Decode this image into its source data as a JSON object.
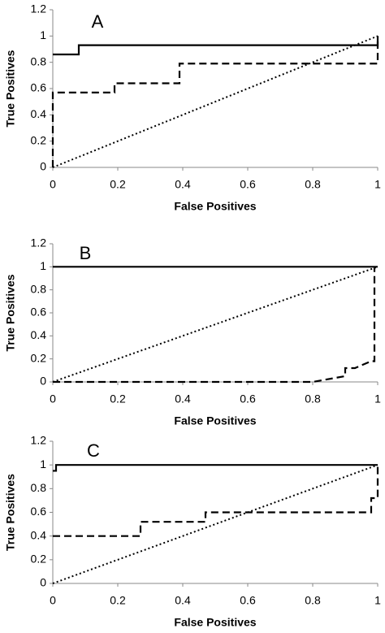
{
  "chart_data": [
    {
      "type": "line",
      "title": "A",
      "xlabel": "False Positives",
      "ylabel": "True Positives",
      "xlim": [
        0,
        1
      ],
      "ylim": [
        0,
        1.2
      ],
      "xticks": [
        0,
        0.2,
        0.4,
        0.6,
        0.8,
        1
      ],
      "yticks": [
        0,
        0.2,
        0.4,
        0.6,
        0.8,
        1,
        1.2
      ],
      "series": [
        {
          "color": "#000000",
          "dash": "solid",
          "x": [
            0,
            0.08,
            0.08,
            1,
            1
          ],
          "values": [
            0.86,
            0.86,
            0.93,
            0.93,
            1
          ]
        },
        {
          "color": "#000000",
          "dash": "dashed",
          "x": [
            0,
            0,
            0.19,
            0.19,
            0.39,
            0.39,
            1,
            1
          ],
          "values": [
            0,
            0.57,
            0.57,
            0.64,
            0.64,
            0.79,
            0.79,
            1
          ]
        },
        {
          "color": "#000000",
          "dash": "dotted",
          "x": [
            0,
            1
          ],
          "values": [
            0,
            1
          ]
        }
      ]
    },
    {
      "type": "line",
      "title": "B",
      "xlabel": "False Positives",
      "ylabel": "True Positives",
      "xlim": [
        0,
        1
      ],
      "ylim": [
        0,
        1.2
      ],
      "xticks": [
        0,
        0.2,
        0.4,
        0.6,
        0.8,
        1
      ],
      "yticks": [
        0,
        0.2,
        0.4,
        0.6,
        0.8,
        1,
        1.2
      ],
      "series": [
        {
          "color": "#000000",
          "dash": "solid",
          "x": [
            0,
            1
          ],
          "values": [
            1,
            1
          ]
        },
        {
          "color": "#000000",
          "dash": "dashed",
          "x": [
            0,
            0.8,
            0.86,
            0.9,
            0.9,
            0.93,
            0.98,
            0.99,
            0.99
          ],
          "values": [
            0,
            0,
            0.03,
            0.05,
            0.12,
            0.12,
            0.18,
            0.18,
            1
          ]
        },
        {
          "color": "#000000",
          "dash": "dotted",
          "x": [
            0,
            1
          ],
          "values": [
            0,
            1
          ]
        }
      ]
    },
    {
      "type": "line",
      "title": "C",
      "xlabel": "False Positives",
      "ylabel": "True Positives",
      "xlim": [
        0,
        1
      ],
      "ylim": [
        0,
        1.2
      ],
      "xticks": [
        0,
        0.2,
        0.4,
        0.6,
        0.8,
        1
      ],
      "yticks": [
        0,
        0.2,
        0.4,
        0.6,
        0.8,
        1,
        1.2
      ],
      "series": [
        {
          "color": "#000000",
          "dash": "solid",
          "x": [
            0,
            0.01,
            0.01,
            1
          ],
          "values": [
            0.95,
            0.95,
            1,
            1
          ]
        },
        {
          "color": "#000000",
          "dash": "dashed",
          "x": [
            0,
            0.27,
            0.27,
            0.47,
            0.47,
            0.98,
            0.98,
            1,
            1
          ],
          "values": [
            0.4,
            0.4,
            0.52,
            0.52,
            0.6,
            0.6,
            0.72,
            0.72,
            1
          ]
        },
        {
          "color": "#000000",
          "dash": "dotted",
          "x": [
            0,
            1
          ],
          "values": [
            0,
            1
          ]
        }
      ]
    }
  ]
}
